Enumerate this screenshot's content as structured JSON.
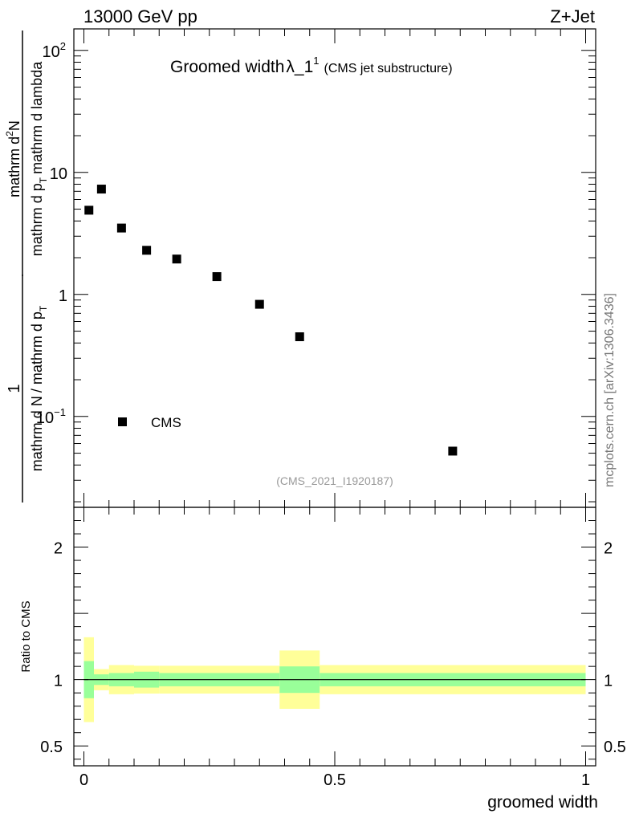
{
  "header": {
    "left": "13000 GeV pp",
    "right": "Z+Jet"
  },
  "title": {
    "main": "Groomed width",
    "symbol": "λ_1",
    "sup": "1",
    "note": "(CMS jet substructure)"
  },
  "watermark": "(CMS_2021_I1920187)",
  "side_label": "mcplots.cern.ch [arXiv:1306.3436]",
  "ylabel": {
    "numerator_line1": "mathrm d",
    "numerator_sup": "2",
    "numerator_line2": "N",
    "denominator_line1": "mathrm d p",
    "denominator_sub": "T",
    "denominator_line2": "mathrm d lambda",
    "prefix": "1",
    "prefix_den1": "mathrm d N",
    "prefix_den2": "/ mathrm d p",
    "prefix_den_sub": "T"
  },
  "ratio_ylabel": "Ratio to CMS",
  "xlabel": "groomed width",
  "legend": {
    "label": "CMS"
  },
  "colors": {
    "band_inner": "#99ff99",
    "band_outer": "#ffff99",
    "marker": "#000000"
  },
  "chart_data": {
    "type": "scatter",
    "top": {
      "yscale": "log",
      "ylim": [
        0.018,
        150
      ],
      "xlim": [
        -0.02,
        1.02
      ],
      "yticks": [
        {
          "value": 0.1,
          "base": "10",
          "exp": "−1"
        },
        {
          "value": 1,
          "label": "1"
        },
        {
          "value": 10,
          "label": "10"
        },
        {
          "value": 100,
          "base": "10",
          "exp": "2"
        }
      ],
      "series": [
        {
          "name": "CMS",
          "x": [
            0.01,
            0.035,
            0.075,
            0.125,
            0.185,
            0.265,
            0.35,
            0.43,
            0.735
          ],
          "y": [
            4.9,
            7.3,
            3.5,
            2.3,
            1.95,
            1.4,
            0.83,
            0.45,
            0.052
          ]
        }
      ]
    },
    "ratio": {
      "ylim": [
        0.35,
        2.3
      ],
      "yticks": [
        0.5,
        1,
        2
      ],
      "xticks": [
        0,
        0.5,
        1
      ],
      "bins": [
        {
          "x0": 0.0,
          "x1": 0.02,
          "inner": [
            0.86,
            1.14
          ],
          "outer": [
            0.68,
            1.32
          ]
        },
        {
          "x0": 0.02,
          "x1": 0.05,
          "inner": [
            0.96,
            1.04
          ],
          "outer": [
            0.92,
            1.08
          ]
        },
        {
          "x0": 0.05,
          "x1": 0.1,
          "inner": [
            0.95,
            1.05
          ],
          "outer": [
            0.89,
            1.11
          ]
        },
        {
          "x0": 0.1,
          "x1": 0.15,
          "inner": [
            0.94,
            1.06
          ],
          "outer": [
            0.895,
            1.105
          ]
        },
        {
          "x0": 0.15,
          "x1": 0.39,
          "inner": [
            0.95,
            1.05
          ],
          "outer": [
            0.895,
            1.105
          ]
        },
        {
          "x0": 0.39,
          "x1": 0.47,
          "inner": [
            0.9,
            1.1
          ],
          "outer": [
            0.78,
            1.22
          ]
        },
        {
          "x0": 0.47,
          "x1": 1.0,
          "inner": [
            0.95,
            1.05
          ],
          "outer": [
            0.89,
            1.11
          ]
        }
      ]
    }
  }
}
